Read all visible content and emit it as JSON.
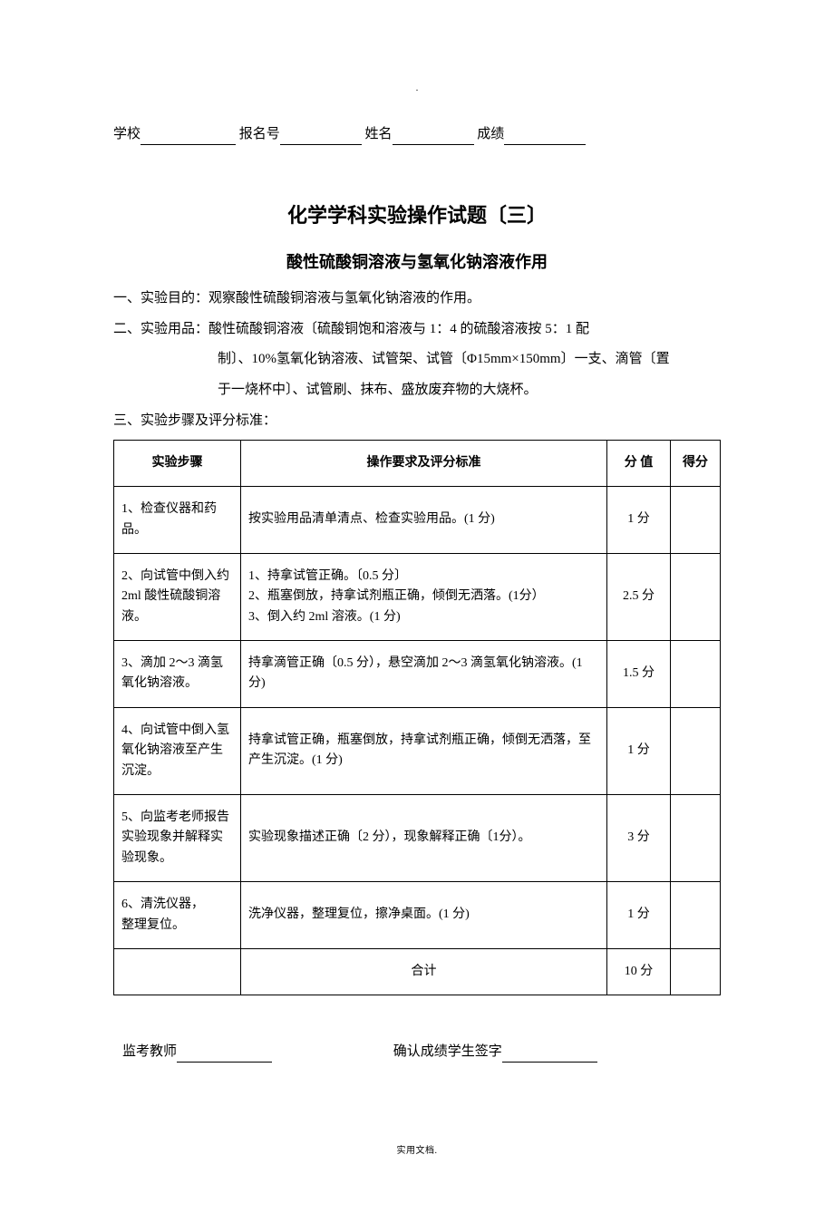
{
  "top_dot": ".",
  "header": {
    "school_label": "学校",
    "reg_label": "报名号",
    "name_label": "姓名",
    "grade_label": "成绩"
  },
  "title_main": "化学学科实验操作试题〔三〕",
  "title_sub": "酸性硫酸铜溶液与氢氧化钠溶液作用",
  "purpose": {
    "label": "一、实验目的：",
    "text": "观察酸性硫酸铜溶液与氢氧化钠溶液的作用。"
  },
  "materials": {
    "label": "二、实验用品：",
    "line1": "酸性硫酸铜溶液〔硫酸铜饱和溶液与 1：4 的硫酸溶液按 5：1 配",
    "line2": "制〕、10%氢氧化钠溶液、试管架、试管〔Φ15mm×150mm〕一支、滴管〔置",
    "line3": "于一烧杯中〕、试管刷、抹布、盛放废弃物的大烧杯。"
  },
  "steps_label": "三、实验步骤及评分标准：",
  "table": {
    "headers": {
      "step": "实验步骤",
      "req": "操作要求及评分标准",
      "score": "分  值",
      "got": "得分"
    },
    "rows": [
      {
        "step": "1、检查仪器和药品。",
        "req": "按实验用品清单清点、检查实验用品。(1 分)",
        "score": "1 分"
      },
      {
        "step": "2、向试管中倒入约2ml 酸性硫酸铜溶液。",
        "req": "1、持拿试管正确。〔0.5 分〕\n2、瓶塞倒放，持拿试剂瓶正确，倾倒无洒落。(1分）\n3、倒入约 2ml 溶液。(1 分)",
        "score": "2.5 分"
      },
      {
        "step": "3、滴加 2～3 滴氢氧化钠溶液。",
        "req": "持拿滴管正确〔0.5 分），悬空滴加 2～3 滴氢氧化钠溶液。(1 分)",
        "score": "1.5 分"
      },
      {
        "step": "4、向试管中倒入氢氧化钠溶液至产生沉淀。",
        "req": "持拿试管正确，瓶塞倒放，持拿试剂瓶正确，倾倒无洒落，至产生沉淀。(1 分)",
        "score": "1 分"
      },
      {
        "step": "5、向监考老师报告实验现象并解释实验现象。",
        "req": "实验现象描述正确〔2 分），现象解释正确〔1分）。",
        "score": "3 分"
      },
      {
        "step": "6、清洗仪器，\n    整理复位。",
        "req": "洗净仪器，整理复位，擦净桌面。(1 分)",
        "score": "1 分"
      }
    ],
    "total_label": "合计",
    "total_score": "10 分"
  },
  "footer": {
    "invigilator": "监考教师",
    "confirm": "确认成绩学生签字"
  },
  "page_footer": "实用文档."
}
